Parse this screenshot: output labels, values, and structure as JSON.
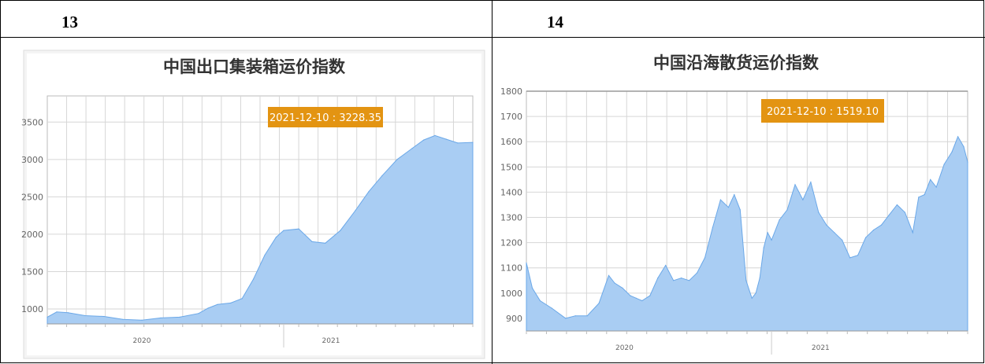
{
  "table": {
    "left_label": "13",
    "right_label": "14"
  },
  "colors": {
    "area_fill": "#a9cdf3",
    "area_stroke": "#6ba8e8",
    "grid": "#d6d6d6",
    "annotation_bg": "#e39412"
  },
  "chart_data": [
    {
      "type": "area",
      "title": "中国出口集装箱运价指数",
      "annotation": "2021-12-10 : 3228.35",
      "xlabel": "",
      "ylabel": "",
      "y_ticks": [
        1000,
        1500,
        2000,
        2500,
        3000,
        3500
      ],
      "ylim": [
        800,
        3850
      ],
      "xlim": [
        2019.75,
        2022.0
      ],
      "x_tick_labels": [
        {
          "x": 2020.25,
          "label": "2020"
        },
        {
          "x": 2021.25,
          "label": "2021"
        }
      ],
      "grid": true,
      "x": [
        2019.75,
        2019.8,
        2019.86,
        2019.95,
        2020.05,
        2020.15,
        2020.25,
        2020.35,
        2020.45,
        2020.55,
        2020.6,
        2020.65,
        2020.72,
        2020.78,
        2020.84,
        2020.9,
        2020.96,
        2021.0,
        2021.08,
        2021.15,
        2021.22,
        2021.3,
        2021.38,
        2021.45,
        2021.52,
        2021.6,
        2021.68,
        2021.74,
        2021.8,
        2021.86,
        2021.92,
        2022.0
      ],
      "values": [
        890,
        960,
        950,
        910,
        900,
        860,
        850,
        880,
        890,
        940,
        1010,
        1060,
        1080,
        1140,
        1400,
        1720,
        1960,
        2050,
        2070,
        1900,
        1880,
        2050,
        2320,
        2570,
        2780,
        3000,
        3150,
        3260,
        3320,
        3270,
        3220,
        3228
      ]
    },
    {
      "type": "area",
      "title": "中国沿海散货运价指数",
      "annotation": "2021-12-10 : 1519.10",
      "xlabel": "",
      "ylabel": "",
      "y_ticks": [
        900,
        1000,
        1100,
        1200,
        1300,
        1400,
        1500,
        1600,
        1700,
        1800
      ],
      "ylim": [
        850,
        1800
      ],
      "xlim": [
        2019.75,
        2022.0
      ],
      "x_tick_labels": [
        {
          "x": 2020.25,
          "label": "2020"
        },
        {
          "x": 2021.25,
          "label": "2021"
        }
      ],
      "grid": true,
      "x": [
        2019.75,
        2019.78,
        2019.82,
        2019.88,
        2019.95,
        2020.0,
        2020.06,
        2020.12,
        2020.17,
        2020.2,
        2020.24,
        2020.28,
        2020.31,
        2020.34,
        2020.38,
        2020.42,
        2020.46,
        2020.5,
        2020.54,
        2020.58,
        2020.62,
        2020.66,
        2020.7,
        2020.74,
        2020.78,
        2020.81,
        2020.84,
        2020.87,
        2020.9,
        2020.92,
        2020.94,
        2020.96,
        2020.98,
        2021.0,
        2021.04,
        2021.08,
        2021.12,
        2021.16,
        2021.2,
        2021.24,
        2021.28,
        2021.32,
        2021.36,
        2021.4,
        2021.44,
        2021.48,
        2021.52,
        2021.56,
        2021.6,
        2021.64,
        2021.68,
        2021.72,
        2021.75,
        2021.78,
        2021.81,
        2021.84,
        2021.88,
        2021.92,
        2021.95,
        2021.98,
        2022.0
      ],
      "values": [
        1120,
        1020,
        970,
        940,
        900,
        910,
        910,
        960,
        1070,
        1040,
        1020,
        990,
        980,
        970,
        990,
        1060,
        1110,
        1050,
        1060,
        1050,
        1080,
        1140,
        1260,
        1370,
        1340,
        1390,
        1330,
        1050,
        980,
        1000,
        1060,
        1180,
        1240,
        1210,
        1290,
        1330,
        1430,
        1370,
        1440,
        1320,
        1270,
        1240,
        1210,
        1140,
        1150,
        1220,
        1250,
        1270,
        1310,
        1350,
        1320,
        1240,
        1380,
        1390,
        1450,
        1420,
        1510,
        1560,
        1620,
        1580,
        1519
      ]
    }
  ]
}
